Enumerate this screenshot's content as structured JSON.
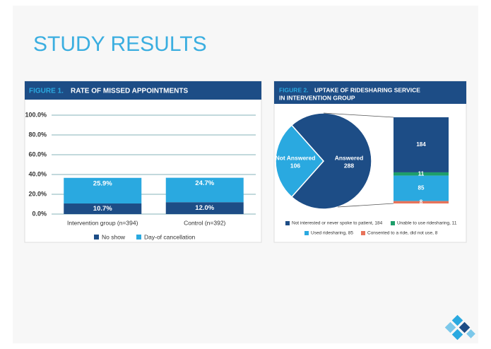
{
  "title": "STUDY RESULTS",
  "chart_data": [
    {
      "type": "bar",
      "stacked": true,
      "figure_label": "FIGURE 1.",
      "title": "RATE OF MISSED APPOINTMENTS",
      "categories": [
        "Intervention group (n=394)",
        "Control (n=392)"
      ],
      "series": [
        {
          "name": "No show",
          "color": "#1d4d86",
          "values": [
            10.7,
            12.0
          ],
          "value_labels": [
            "10.7%",
            "12.0%"
          ]
        },
        {
          "name": "Day-of cancellation",
          "color": "#2aa9e0",
          "values": [
            25.9,
            24.7
          ],
          "value_labels": [
            "25.9%",
            "24.7%"
          ]
        }
      ],
      "ylim": [
        0,
        100
      ],
      "yticks": [
        {
          "value": 0,
          "label": "0.0%"
        },
        {
          "value": 20,
          "label": "20.0%"
        },
        {
          "value": 40,
          "label": "40.0%"
        },
        {
          "value": 60,
          "label": "60.0%"
        },
        {
          "value": 80,
          "label": "80.0%"
        },
        {
          "value": 100,
          "label": "100.0%"
        }
      ],
      "grid": true,
      "legend": "bottom"
    },
    {
      "type": "pie",
      "figure_label": "FIGURE 2.",
      "title": [
        "UPTAKE OF RIDESHARING SERVICE",
        "IN INTERVENTION GROUP"
      ],
      "categories": [
        "Not Answered",
        "Answered"
      ],
      "values": [
        106,
        288
      ],
      "colors": [
        "#2aa9e0",
        "#1d4d86"
      ],
      "breakdown": {
        "type": "bar",
        "stacked": true,
        "series": [
          {
            "name": "Not interested or never spoke to patient, 184",
            "color": "#1d4d86",
            "values": [
              184
            ]
          },
          {
            "name": "Unable to use ridesharing, 11",
            "color": "#1e9e6a",
            "values": [
              11
            ]
          },
          {
            "name": "Used ridesharing, 85",
            "color": "#2aa9e0",
            "values": [
              85
            ]
          },
          {
            "name": "Consented to a ride, did not use, 8",
            "color": "#e8735a",
            "values": [
              8
            ]
          }
        ]
      },
      "legend": "bottom"
    }
  ]
}
